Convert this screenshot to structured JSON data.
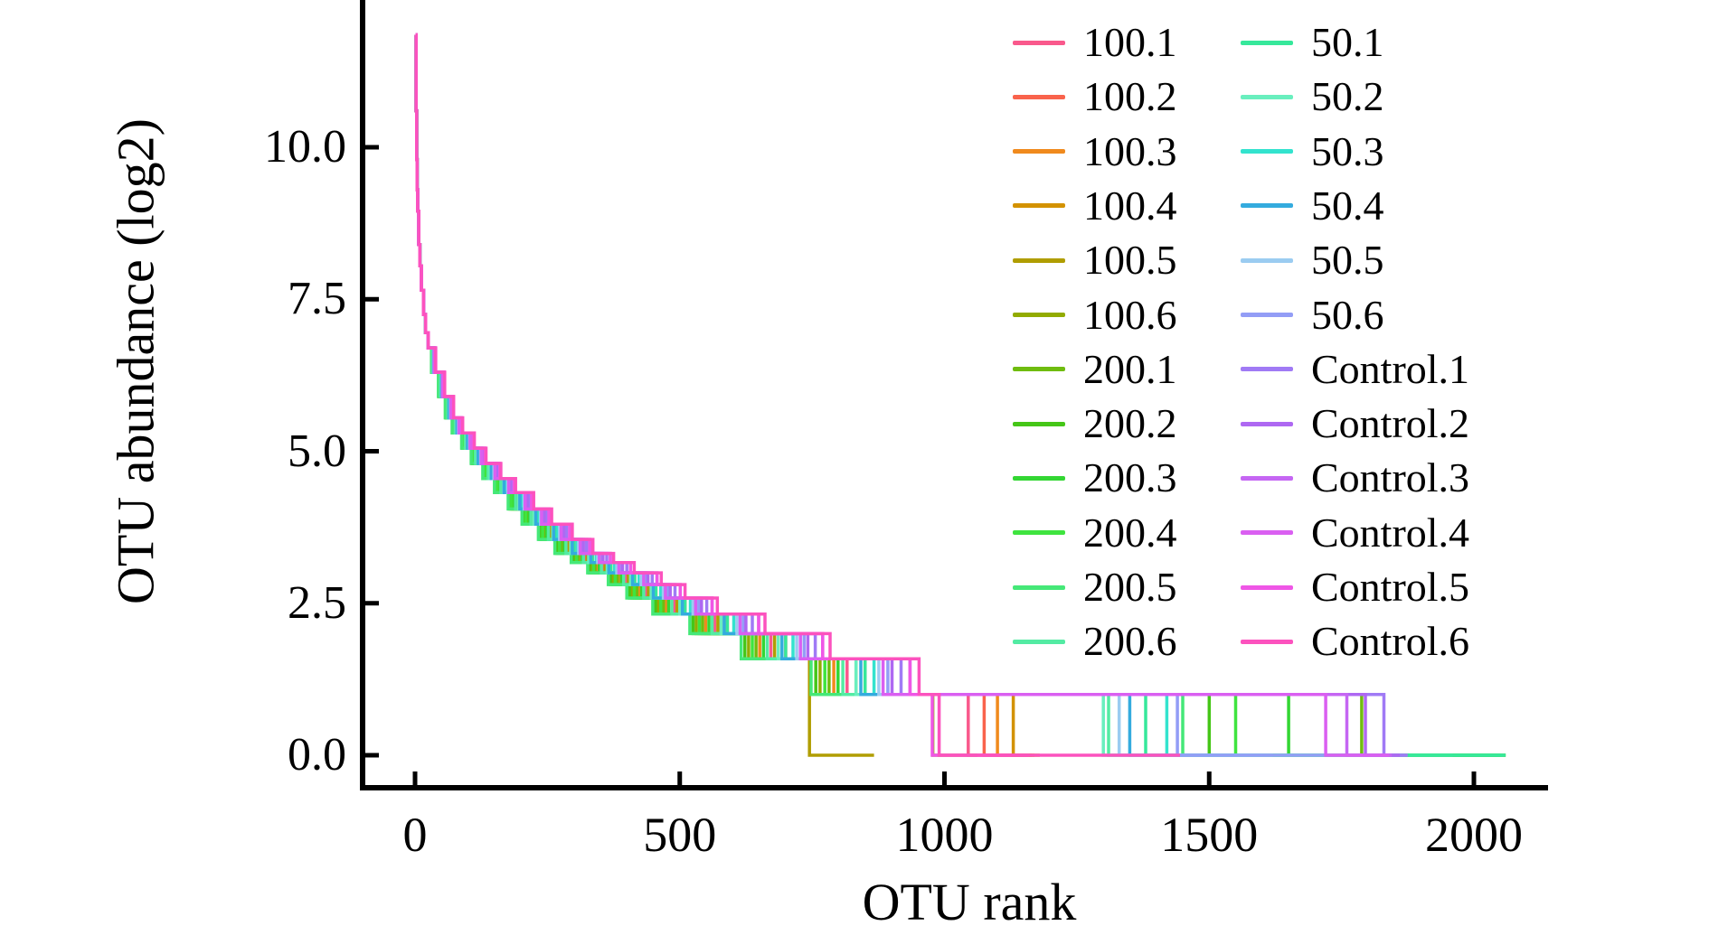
{
  "figure": {
    "background_color": "#ffffff",
    "axis_color": "#000000",
    "text_color": "#000000"
  },
  "y_axis": {
    "title": "OTU abundance (log2)",
    "tick_labels": [
      "10.0",
      "7.5",
      "5.0",
      "2.5",
      "0.0"
    ],
    "tick_values": [
      10.0,
      7.5,
      5.0,
      2.5,
      0.0
    ]
  },
  "x_axis": {
    "title": "OTU rank",
    "tick_labels": [
      "0",
      "500",
      "1000",
      "1500",
      "2000"
    ],
    "tick_values": [
      0,
      500,
      1000,
      1500,
      2000
    ]
  },
  "legend": {
    "column1": [
      "100.1",
      "100.2",
      "100.3",
      "100.4",
      "100.5",
      "100.6",
      "200.1",
      "200.2",
      "200.3",
      "200.4",
      "200.5",
      "200.6"
    ],
    "column2": [
      "50.1",
      "50.2",
      "50.3",
      "50.4",
      "50.5",
      "50.6",
      "Control.1",
      "Control.2",
      "Control.3",
      "Control.4",
      "Control.5",
      "Control.6"
    ]
  },
  "chart_data": {
    "type": "line",
    "style": "step-after",
    "title": "",
    "xlabel": "OTU rank",
    "ylabel": "OTU abundance (log2)",
    "xlim": [
      0,
      2140
    ],
    "ylim": [
      0,
      12.2
    ],
    "grid": false,
    "legend_position": "top-right-inside-two-columns",
    "anchor_format": "[OTU rank, log2 abundance] estimated from plot; all 24 curves share the head/mid decay shape, with per-series rank_scale applied to mid anchors, then a plateau at log2=1.0 until zero_drop_rank, then 0 until end_rank",
    "head_anchors": [
      [
        1,
        11.85
      ],
      [
        2,
        10.6
      ],
      [
        3,
        9.8
      ],
      [
        4,
        9.3
      ],
      [
        5,
        8.95
      ],
      [
        7,
        8.4
      ],
      [
        9,
        8.05
      ],
      [
        12,
        7.65
      ],
      [
        16,
        7.25
      ],
      [
        20,
        6.95
      ],
      [
        25,
        6.7
      ]
    ],
    "mid_anchors": [
      [
        35,
        6.3
      ],
      [
        50,
        5.9
      ],
      [
        65,
        5.55
      ],
      [
        80,
        5.3
      ],
      [
        100,
        5.05
      ],
      [
        120,
        4.8
      ],
      [
        145,
        4.55
      ],
      [
        170,
        4.32
      ],
      [
        200,
        4.05
      ],
      [
        230,
        3.8
      ],
      [
        265,
        3.55
      ],
      [
        300,
        3.32
      ],
      [
        335,
        3.17
      ],
      [
        370,
        3.0
      ],
      [
        415,
        2.807
      ],
      [
        455,
        2.585
      ],
      [
        510,
        2.322
      ],
      [
        590,
        2.0
      ],
      [
        700,
        1.585
      ],
      [
        850,
        1.0
      ]
    ],
    "series": [
      {
        "name": "100.1",
        "color": "#F9598C",
        "rank_scale": 0.96,
        "zero_drop_rank": 1045,
        "end_rank": 1165
      },
      {
        "name": "100.2",
        "color": "#F9634C",
        "rank_scale": 1.0,
        "zero_drop_rank": 1075,
        "end_rank": 1150
      },
      {
        "name": "100.3",
        "color": "#F08A1D",
        "rank_scale": 0.93,
        "zero_drop_rank": 1100,
        "end_rank": 1170
      },
      {
        "name": "100.4",
        "color": "#D39200",
        "rank_scale": 0.98,
        "zero_drop_rank": 1130,
        "end_rank": 1180
      },
      {
        "name": "100.5",
        "color": "#B09D00",
        "rank_scale": 0.97,
        "zero_drop_rank": 745,
        "end_rank": 867
      },
      {
        "name": "100.6",
        "color": "#92AB00",
        "rank_scale": 0.9,
        "zero_drop_rank": 978,
        "end_rank": 1062
      },
      {
        "name": "200.1",
        "color": "#6FBC0F",
        "rank_scale": 0.92,
        "zero_drop_rank": 1788,
        "end_rank": 2060
      },
      {
        "name": "200.2",
        "color": "#45C617",
        "rank_scale": 0.89,
        "zero_drop_rank": 1500,
        "end_rank": 2050
      },
      {
        "name": "200.3",
        "color": "#33D633",
        "rank_scale": 0.94,
        "zero_drop_rank": 1650,
        "end_rank": 2060
      },
      {
        "name": "200.4",
        "color": "#3FE43F",
        "rank_scale": 0.91,
        "zero_drop_rank": 1550,
        "end_rank": 2045
      },
      {
        "name": "200.5",
        "color": "#45E878",
        "rank_scale": 0.88,
        "zero_drop_rank": 1450,
        "end_rank": 2055
      },
      {
        "name": "200.6",
        "color": "#53EBA3",
        "rank_scale": 0.95,
        "zero_drop_rank": 1310,
        "end_rank": 1960
      },
      {
        "name": "50.1",
        "color": "#36E89B",
        "rank_scale": 1.0,
        "zero_drop_rank": 1380,
        "end_rank": 2060
      },
      {
        "name": "50.2",
        "color": "#69EFBE",
        "rank_scale": 0.98,
        "zero_drop_rank": 1300,
        "end_rank": 1850
      },
      {
        "name": "50.3",
        "color": "#33E3CE",
        "rank_scale": 1.02,
        "zero_drop_rank": 1420,
        "end_rank": 1600
      },
      {
        "name": "50.4",
        "color": "#34ABDE",
        "rank_scale": 0.99,
        "zero_drop_rank": 1350,
        "end_rank": 1500
      },
      {
        "name": "50.5",
        "color": "#9BCCF1",
        "rank_scale": 1.03,
        "zero_drop_rank": 1330,
        "end_rank": 1620
      },
      {
        "name": "50.6",
        "color": "#939DF6",
        "rank_scale": 1.05,
        "zero_drop_rank": 1440,
        "end_rank": 1870
      },
      {
        "name": "Control.1",
        "color": "#A07AF5",
        "rank_scale": 1.08,
        "zero_drop_rank": 1830,
        "end_rank": 1875
      },
      {
        "name": "Control.2",
        "color": "#AE68F2",
        "rank_scale": 1.06,
        "zero_drop_rank": 1795,
        "end_rank": 1860
      },
      {
        "name": "Control.3",
        "color": "#C566F3",
        "rank_scale": 1.1,
        "zero_drop_rank": 1760,
        "end_rank": 1845
      },
      {
        "name": "Control.4",
        "color": "#DA5FF1",
        "rank_scale": 1.04,
        "zero_drop_rank": 1720,
        "end_rank": 1840
      },
      {
        "name": "Control.5",
        "color": "#EF56E6",
        "rank_scale": 1.1,
        "zero_drop_rank": 977,
        "end_rank": 1160
      },
      {
        "name": "Control.6",
        "color": "#FC52BE",
        "rank_scale": 1.12,
        "zero_drop_rank": 990,
        "end_rank": 1445
      }
    ]
  }
}
